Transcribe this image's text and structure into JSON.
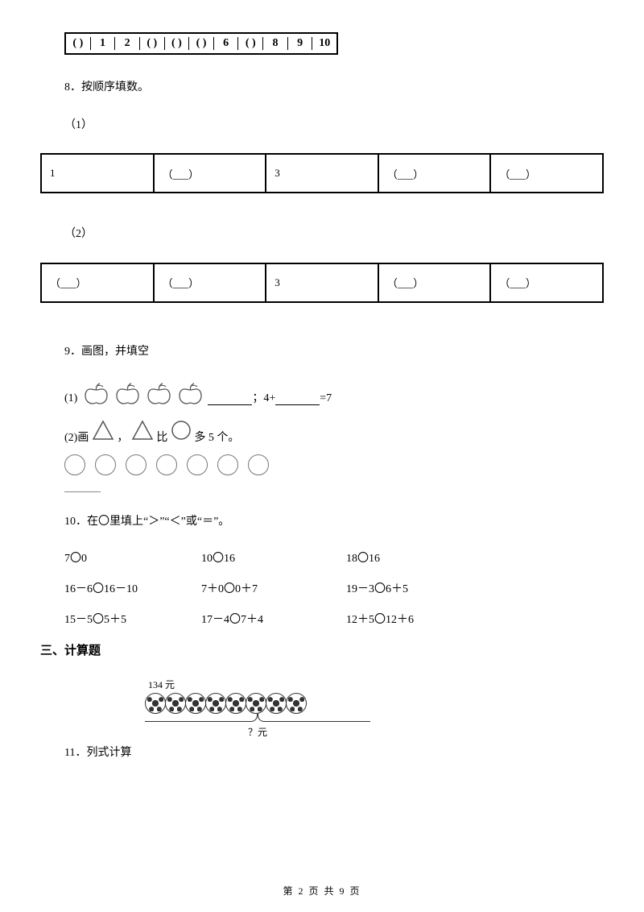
{
  "numberline": {
    "cells": [
      "(  )",
      "1",
      "2",
      "(  )",
      "(  )",
      "(  )",
      "6",
      "(  )",
      "8",
      "9",
      "10"
    ]
  },
  "q8": {
    "title": "8．按顺序填数。",
    "sub1": "（1）",
    "sub2": "（2）",
    "table1": [
      "1",
      "（___）",
      "3",
      "（___）",
      "（___）"
    ],
    "table2": [
      "（___）",
      "（___）",
      "3",
      "（___）",
      "（___）"
    ]
  },
  "q9": {
    "title": "9．画图，并填空",
    "line1_prefix": "(1)",
    "line1_mid": "；4+",
    "line1_suffix": "=7",
    "line2_prefix": "(2)画",
    "line2_mid": "，",
    "line2_after": "比",
    "line2_end": "多 5 个。",
    "circle_count": 7,
    "apple_count": 4
  },
  "q10": {
    "title": "10．在〇里填上“＞”“＜”或“＝”。",
    "rows": [
      [
        "7〇0",
        "10〇16",
        "18〇16"
      ],
      [
        "16－6〇16－10",
        "7＋0〇0＋7",
        "19－3〇6＋5"
      ],
      [
        "15－5〇5＋5",
        "17－4〇7＋4",
        "12＋5〇12＋6"
      ]
    ]
  },
  "section3": "三、计算题",
  "q11": {
    "title": "11．列式计算",
    "price_top": "134 元",
    "brace_label": "？元",
    "ball_count": 8
  },
  "footer": {
    "text": "第 2 页 共 9 页"
  },
  "colors": {
    "text": "#000000",
    "border": "#000000",
    "circle": "#777777",
    "bg": "#ffffff"
  }
}
